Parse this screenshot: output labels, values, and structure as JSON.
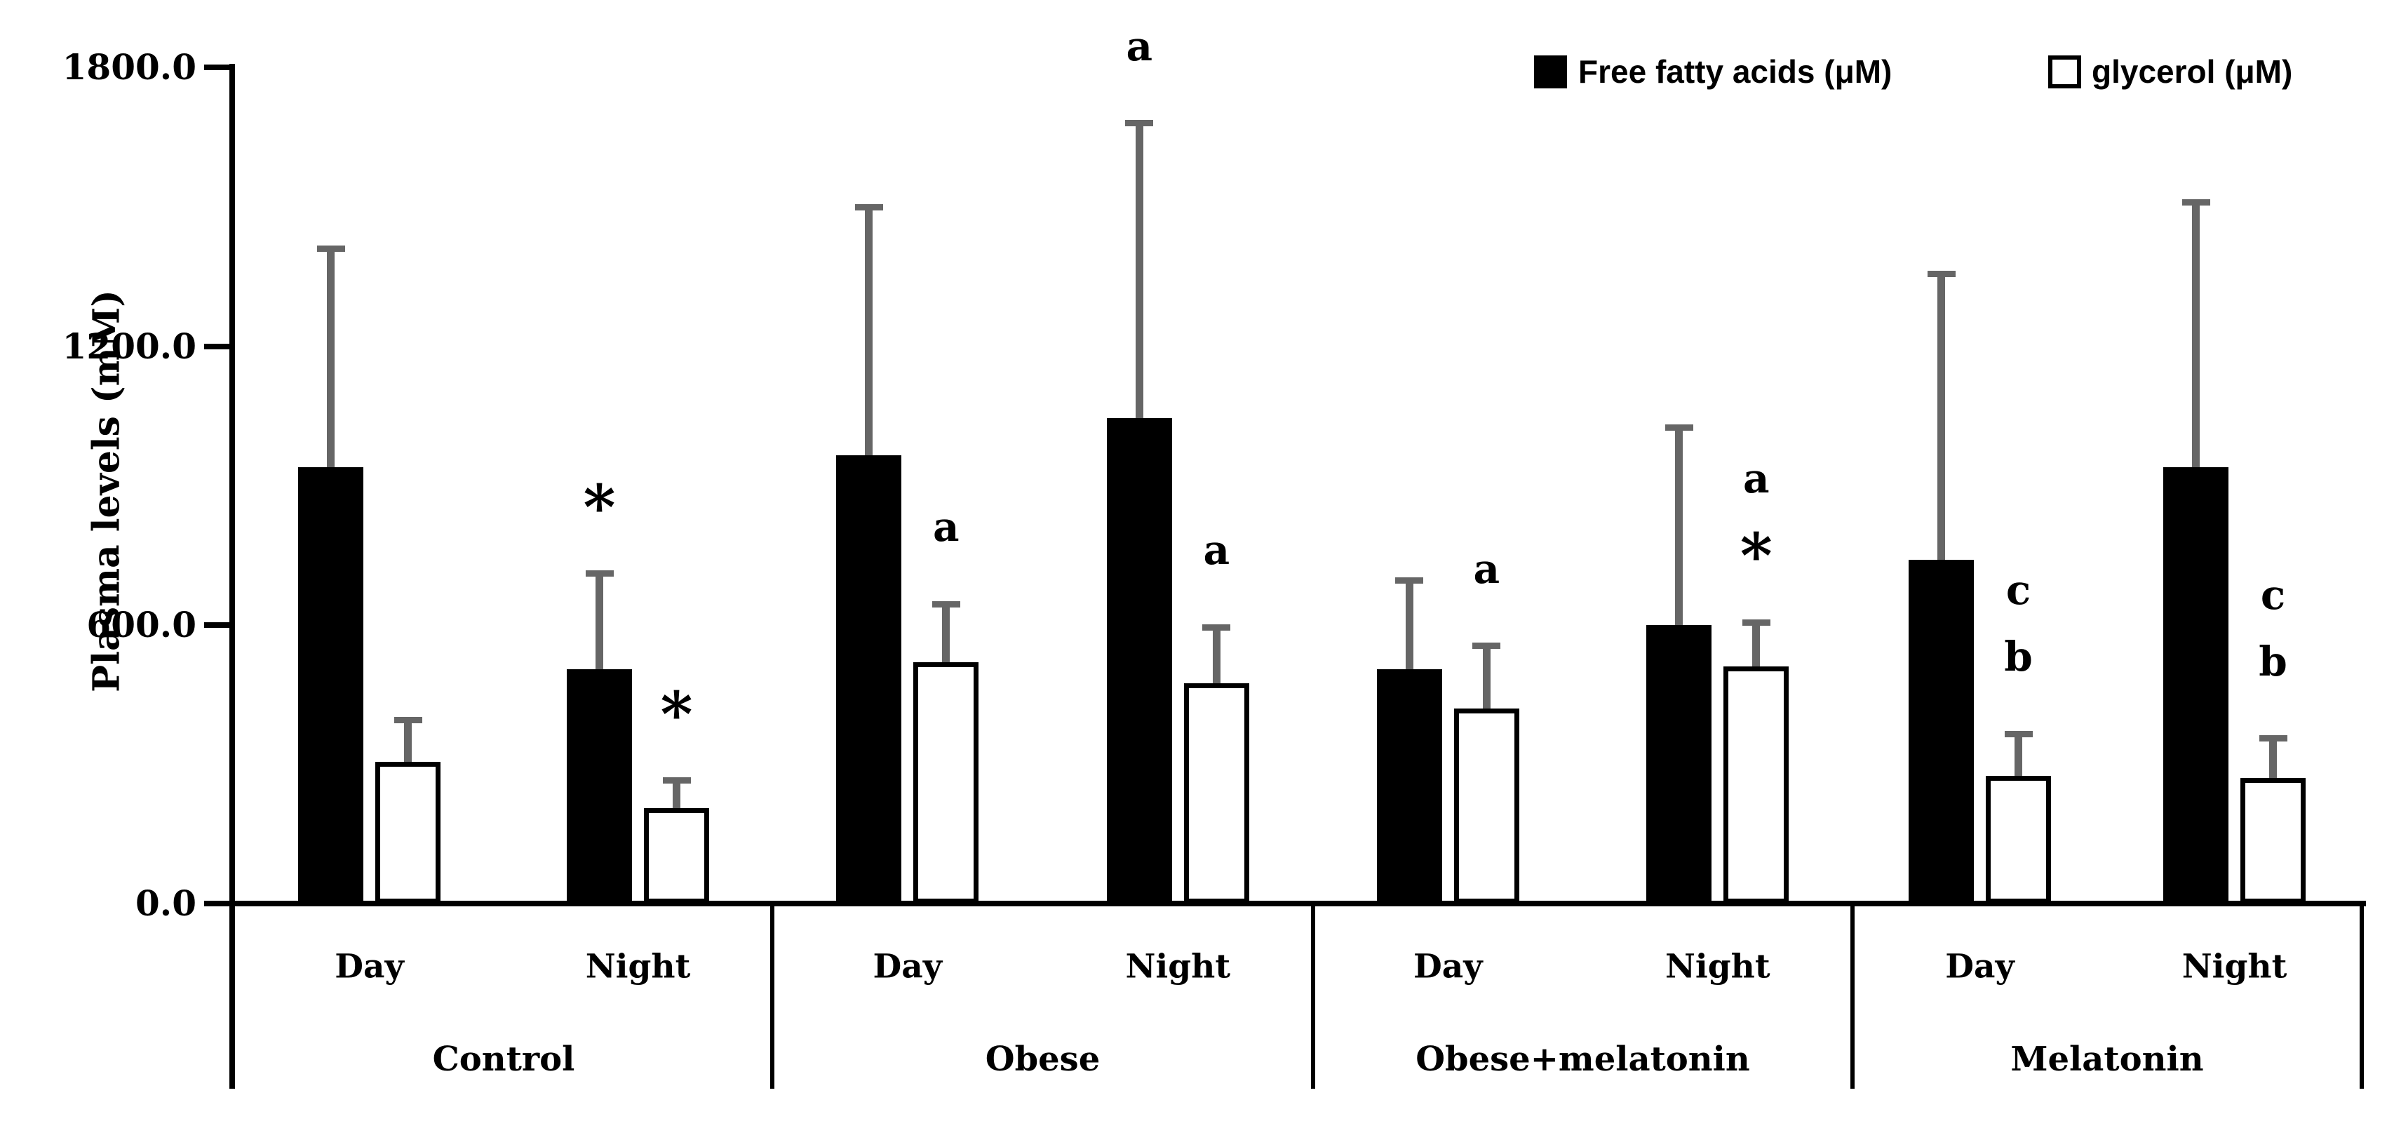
{
  "chart_data": {
    "type": "bar",
    "title": "",
    "ylabel": "Plasma levels (mM)",
    "ylim": [
      0,
      1800
    ],
    "ytick_step": 600,
    "grid": false,
    "legend_position": "top-right",
    "yticks": [
      {
        "value": 1800,
        "label": "1800.0"
      },
      {
        "value": 1200,
        "label": "1200.0"
      },
      {
        "value": 600,
        "label": "600.0"
      },
      {
        "value": 0,
        "label": "0.0"
      }
    ],
    "legend": [
      {
        "label": "Free fatty acids (μM)",
        "fill": "#000000",
        "border": "#000000"
      },
      {
        "label": "glycerol (μM)",
        "fill": "#ffffff",
        "border": "#000000"
      }
    ],
    "time_categories": [
      "Day",
      "Night"
    ],
    "colors": {
      "bar_black": "#000000",
      "bar_white": "#ffffff",
      "error_bar": "#666666"
    },
    "groups": [
      {
        "label": "Control",
        "bars": [
          {
            "series": "Free fatty acids (μM)",
            "time": "Day",
            "value": 940,
            "sd": 470,
            "annotations": []
          },
          {
            "series": "glycerol (μM)",
            "time": "Day",
            "value": 305,
            "sd": 90,
            "annotations": []
          },
          {
            "series": "Free fatty acids (μM)",
            "time": "Night",
            "value": 505,
            "sd": 205,
            "annotations": [
              "*"
            ]
          },
          {
            "series": "glycerol (μM)",
            "time": "Night",
            "value": 205,
            "sd": 60,
            "annotations": [
              "*"
            ]
          }
        ]
      },
      {
        "label": "Obese",
        "bars": [
          {
            "series": "Free fatty acids (μM)",
            "time": "Day",
            "value": 965,
            "sd": 535,
            "annotations": []
          },
          {
            "series": "glycerol (μM)",
            "time": "Day",
            "value": 520,
            "sd": 125,
            "annotations": [
              "a"
            ]
          },
          {
            "series": "Free fatty acids (μM)",
            "time": "Night",
            "value": 1045,
            "sd": 635,
            "annotations": [
              "a"
            ]
          },
          {
            "series": "glycerol (μM)",
            "time": "Night",
            "value": 475,
            "sd": 120,
            "annotations": [
              "a"
            ]
          }
        ]
      },
      {
        "label": "Obese+melatonin",
        "bars": [
          {
            "series": "Free fatty acids (μM)",
            "time": "Day",
            "value": 505,
            "sd": 190,
            "annotations": []
          },
          {
            "series": "glycerol (μM)",
            "time": "Day",
            "value": 420,
            "sd": 135,
            "annotations": [
              "a"
            ]
          },
          {
            "series": "Free fatty acids (μM)",
            "time": "Night",
            "value": 600,
            "sd": 425,
            "annotations": []
          },
          {
            "series": "glycerol (μM)",
            "time": "Night",
            "value": 510,
            "sd": 95,
            "annotations": [
              "a",
              "*"
            ]
          }
        ]
      },
      {
        "label": "Melatonin",
        "bars": [
          {
            "series": "Free fatty acids (μM)",
            "time": "Day",
            "value": 740,
            "sd": 615,
            "annotations": []
          },
          {
            "series": "glycerol (μM)",
            "time": "Day",
            "value": 275,
            "sd": 90,
            "annotations": [
              "c",
              "b"
            ]
          },
          {
            "series": "Free fatty acids (μM)",
            "time": "Night",
            "value": 940,
            "sd": 570,
            "annotations": []
          },
          {
            "series": "glycerol (μM)",
            "time": "Night",
            "value": 270,
            "sd": 85,
            "annotations": [
              "c",
              "b"
            ]
          }
        ]
      }
    ]
  }
}
